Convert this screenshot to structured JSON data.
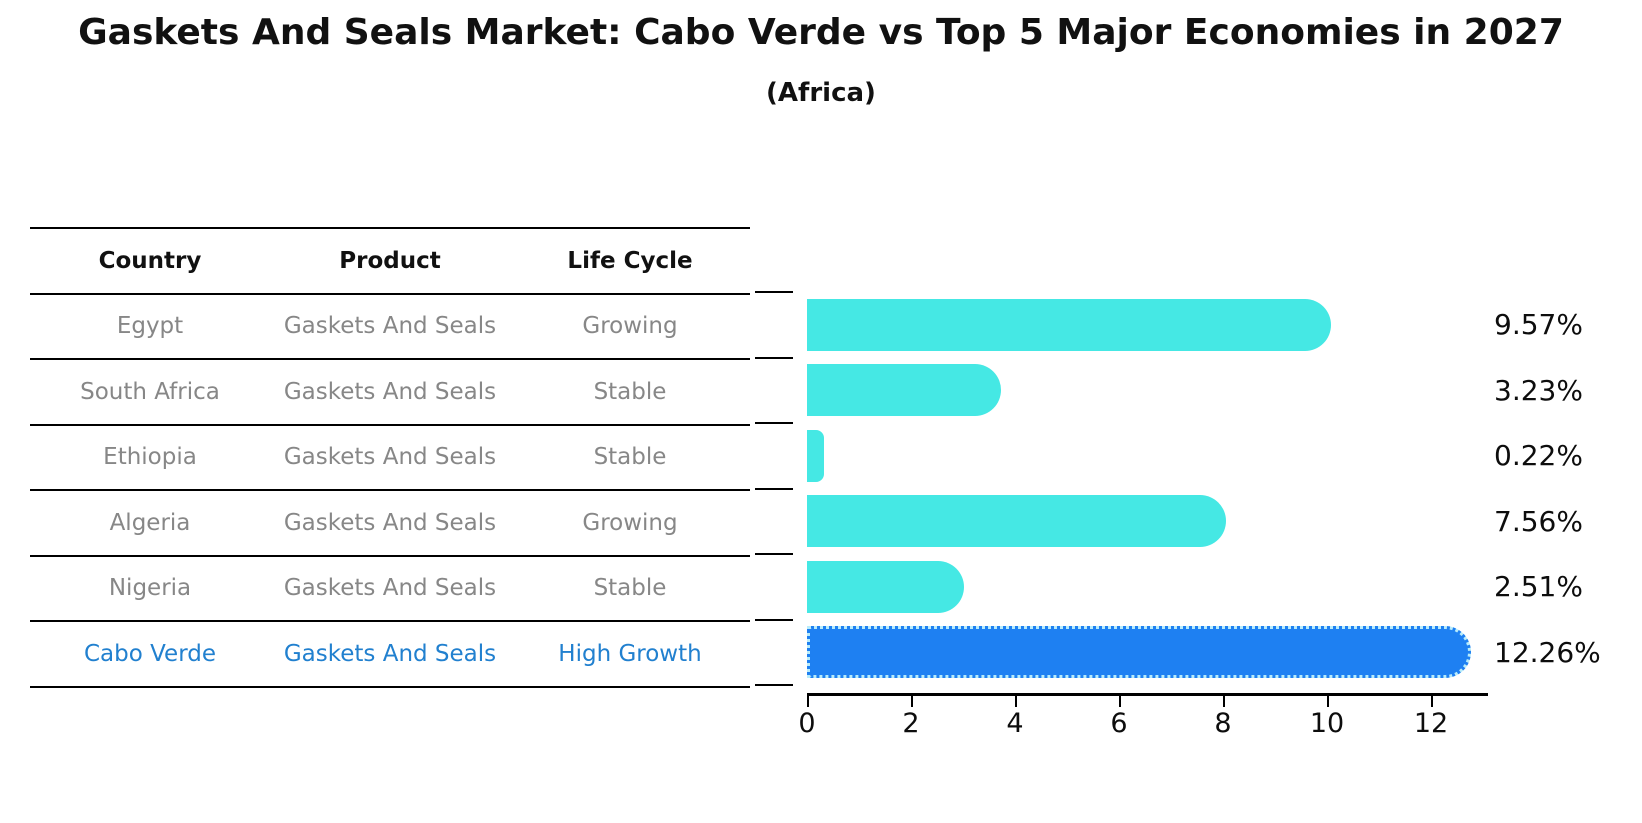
{
  "title": "Gaskets And Seals Market: Cabo Verde vs Top 5 Major Economies in 2027",
  "subtitle": "(Africa)",
  "table": {
    "headers": [
      "Country",
      "Product",
      "Life Cycle"
    ],
    "rows": [
      {
        "country": "Egypt",
        "product": "Gaskets And Seals",
        "life_cycle": "Growing",
        "highlight": false
      },
      {
        "country": "South Africa",
        "product": "Gaskets And Seals",
        "life_cycle": "Stable",
        "highlight": false
      },
      {
        "country": "Ethiopia",
        "product": "Gaskets And Seals",
        "life_cycle": "Stable",
        "highlight": false
      },
      {
        "country": "Algeria",
        "product": "Gaskets And Seals",
        "life_cycle": "Growing",
        "highlight": false
      },
      {
        "country": "Nigeria",
        "product": "Gaskets And Seals",
        "life_cycle": "Stable",
        "highlight": false
      },
      {
        "country": "Cabo Verde",
        "product": "Gaskets And Seals",
        "life_cycle": "High Growth",
        "highlight": true
      }
    ]
  },
  "chart_data": {
    "type": "bar",
    "orientation": "horizontal",
    "title": "Gaskets And Seals Market: Cabo Verde vs Top 5 Major Economies in 2027 (Africa)",
    "categories": [
      "Egypt",
      "South Africa",
      "Ethiopia",
      "Algeria",
      "Nigeria",
      "Cabo Verde"
    ],
    "values": [
      9.57,
      3.23,
      0.22,
      7.56,
      2.51,
      12.26
    ],
    "value_labels": [
      "9.57%",
      "3.23%",
      "0.22%",
      "7.56%",
      "2.51%",
      "12.26%"
    ],
    "highlight_index": 5,
    "xticks": [
      0,
      2,
      4,
      6,
      8,
      10,
      12
    ],
    "xlim": [
      0,
      13
    ],
    "xlabel": "",
    "ylabel": "",
    "grid": false,
    "legend": false
  },
  "colors": {
    "bar": "#45e8e4",
    "highlight_bar": "#1e80f2",
    "highlight_border_dots": "#b9ecfa",
    "highlight_text": "#2180cf",
    "gray_text": "#878787",
    "axis": "#000000"
  }
}
